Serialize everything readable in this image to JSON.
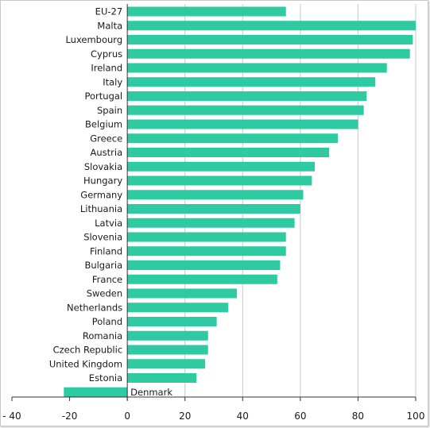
{
  "colors": {
    "bar": "#2ecaa1",
    "grid": "#c8c8c8",
    "axis": "#333333",
    "text": "#1a1a1a"
  },
  "chart_data": {
    "type": "bar",
    "orientation": "horizontal",
    "title": "",
    "xlabel": "",
    "ylabel": "",
    "xlim": [
      -40,
      100
    ],
    "xticks": [
      -40,
      -20,
      0,
      20,
      40,
      60,
      80,
      100
    ],
    "xtick_labels": [
      "- 40",
      "-20",
      "0",
      "20",
      "40",
      "60",
      "80",
      "100"
    ],
    "grid": "vertical",
    "legend": "none",
    "categories": [
      "EU-27",
      "Malta",
      "Luxembourg",
      "Cyprus",
      "Ireland",
      "Italy",
      "Portugal",
      "Spain",
      "Belgium",
      "Greece",
      "Austria",
      "Slovakia",
      "Hungary",
      "Germany",
      "Lithuania",
      "Latvia",
      "Slovenia",
      "Finland",
      "Bulgaria",
      "France",
      "Sweden",
      "Netherlands",
      "Poland",
      "Romania",
      "Czech Republic",
      "United Kingdom",
      "Estonia",
      "Denmark"
    ],
    "values": [
      55,
      100,
      99,
      98,
      90,
      86,
      83,
      82,
      80,
      73,
      70,
      65,
      64,
      61,
      60,
      58,
      55,
      55,
      53,
      52,
      38,
      35,
      31,
      28,
      28,
      27,
      24,
      -22
    ]
  }
}
